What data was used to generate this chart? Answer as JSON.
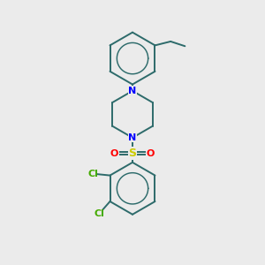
{
  "background_color": "#ebebeb",
  "bond_color": "#2d6b6b",
  "N_color": "#0000ff",
  "S_color": "#cccc00",
  "O_color": "#ff0000",
  "Cl_color": "#44aa00",
  "line_width": 1.4,
  "fig_size": [
    3.0,
    3.0
  ],
  "dpi": 100,
  "xlim": [
    0,
    10
  ],
  "ylim": [
    0,
    10
  ]
}
